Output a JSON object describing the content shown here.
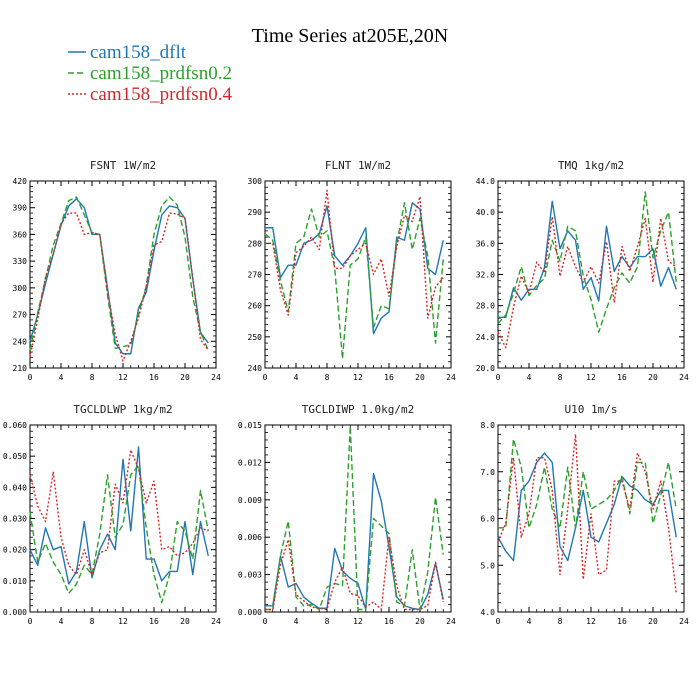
{
  "figure": {
    "title": "Time Series at205E,20N",
    "legend": [
      {
        "label": "cam158_dflt",
        "color": "#1f77b4",
        "dash": "solid"
      },
      {
        "label": "cam158_prdfsn0.2",
        "color": "#2ca02c",
        "dash": "dash"
      },
      {
        "label": "cam158_prdfsn0.4",
        "color": "#d62728",
        "dash": "dot"
      }
    ]
  },
  "chart_data": [
    {
      "type": "line",
      "title": "FSNT   1W/m2",
      "x": [
        0,
        1,
        2,
        3,
        4,
        5,
        6,
        7,
        8,
        9,
        10,
        11,
        12,
        13,
        14,
        15,
        16,
        17,
        18,
        19,
        20,
        21,
        22,
        23
      ],
      "xlim": [
        0,
        24
      ],
      "xticks": [
        0,
        4,
        8,
        12,
        16,
        20,
        24
      ],
      "xticklabels": [
        "0",
        "4",
        "8",
        "12",
        "16",
        "20",
        "24"
      ],
      "ylim": [
        210,
        420
      ],
      "yticks": [
        210,
        240,
        270,
        300,
        330,
        360,
        390,
        420
      ],
      "yticklabels": [
        "210",
        "240",
        "270",
        "300",
        "330",
        "360",
        "390",
        "420"
      ],
      "series": [
        {
          "name": "cam158_dflt",
          "color": "#1f77b4",
          "dash": "solid",
          "values": [
            240,
            270,
            305,
            338,
            370,
            392,
            400,
            390,
            360,
            360,
            300,
            238,
            226,
            226,
            277,
            295,
            342,
            382,
            392,
            390,
            378,
            310,
            250,
            238
          ]
        },
        {
          "name": "cam158_prdfsn0.2",
          "color": "#2ca02c",
          "dash": "dash",
          "values": [
            230,
            272,
            310,
            348,
            372,
            398,
            402,
            382,
            362,
            360,
            292,
            232,
            234,
            236,
            270,
            302,
            360,
            392,
            402,
            393,
            357,
            290,
            250,
            230
          ]
        },
        {
          "name": "cam158_prdfsn0.4",
          "color": "#d62728",
          "dash": "dot",
          "values": [
            222,
            265,
            312,
            338,
            372,
            384,
            384,
            360,
            362,
            360,
            296,
            248,
            218,
            240,
            266,
            302,
            348,
            352,
            384,
            383,
            378,
            312,
            242,
            230
          ]
        }
      ]
    },
    {
      "type": "line",
      "title": "FLNT   1W/m2",
      "x": [
        0,
        1,
        2,
        3,
        4,
        5,
        6,
        7,
        8,
        9,
        10,
        11,
        12,
        13,
        14,
        15,
        16,
        17,
        18,
        19,
        20,
        21,
        22,
        23
      ],
      "xlim": [
        0,
        24
      ],
      "xticks": [
        0,
        4,
        8,
        12,
        16,
        20,
        24
      ],
      "xticklabels": [
        "0",
        "4",
        "8",
        "12",
        "16",
        "20",
        "24"
      ],
      "ylim": [
        240,
        300
      ],
      "yticks": [
        240,
        250,
        260,
        270,
        280,
        290,
        300
      ],
      "yticklabels": [
        "240",
        "250",
        "260",
        "270",
        "280",
        "290",
        "300"
      ],
      "series": [
        {
          "name": "cam158_dflt",
          "color": "#1f77b4",
          "dash": "solid",
          "values": [
            285,
            285,
            269,
            273,
            273,
            280,
            281,
            283,
            292,
            276,
            273,
            276,
            280,
            285,
            251,
            256,
            258,
            282,
            281,
            293,
            291,
            272,
            270,
            281
          ]
        },
        {
          "name": "cam158_prdfsn0.2",
          "color": "#2ca02c",
          "dash": "dash",
          "values": [
            283,
            281,
            268,
            258,
            280,
            282,
            291,
            282,
            284,
            272,
            243,
            273,
            275,
            282,
            253,
            260,
            259,
            280,
            293,
            278,
            288,
            276,
            248,
            275
          ]
        },
        {
          "name": "cam158_prdfsn0.4",
          "color": "#d62728",
          "dash": "dot",
          "values": [
            280,
            280,
            265,
            257,
            277,
            279,
            282,
            278,
            297,
            272,
            272,
            276,
            278,
            280,
            270,
            275,
            263,
            279,
            289,
            287,
            295,
            256,
            266,
            269
          ]
        }
      ]
    },
    {
      "type": "line",
      "title": "TMQ   1kg/m2",
      "x": [
        0,
        1,
        2,
        3,
        4,
        5,
        6,
        7,
        8,
        9,
        10,
        11,
        12,
        13,
        14,
        15,
        16,
        17,
        18,
        19,
        20,
        21,
        22,
        23
      ],
      "xlim": [
        0,
        24
      ],
      "xticks": [
        0,
        4,
        8,
        12,
        16,
        20,
        24
      ],
      "xticklabels": [
        "0",
        "4",
        "8",
        "12",
        "16",
        "20",
        "24"
      ],
      "ylim": [
        20.0,
        44.0
      ],
      "yticks": [
        20,
        24,
        28,
        32,
        36,
        40,
        44
      ],
      "yticklabels": [
        "20.0",
        "24.0",
        "28.0",
        "32.0",
        "36.0",
        "40.0",
        "44.0"
      ],
      "series": [
        {
          "name": "cam158_dflt",
          "color": "#1f77b4",
          "dash": "solid",
          "values": [
            26.5,
            26.5,
            30.3,
            28.7,
            30.1,
            30.1,
            32.9,
            41.4,
            35.3,
            37.6,
            36.4,
            30.1,
            31.6,
            28.6,
            38.2,
            32.4,
            34.3,
            32.9,
            34.3,
            34.3,
            35.3,
            30.5,
            32.9,
            30.1
          ]
        },
        {
          "name": "cam158_prdfsn0.2",
          "color": "#2ca02c",
          "dash": "dash",
          "values": [
            25.7,
            26.8,
            29.6,
            33.0,
            29.3,
            30.6,
            31.5,
            36.4,
            33.7,
            38.2,
            37.6,
            31.8,
            28.8,
            24.6,
            27.6,
            30.3,
            32.2,
            30.9,
            33.0,
            42.6,
            34.1,
            37.6,
            40.0,
            31.0
          ]
        },
        {
          "name": "cam158_prdfsn0.4",
          "color": "#d62728",
          "dash": "dot",
          "values": [
            24.6,
            22.6,
            27.8,
            31.8,
            29.6,
            33.6,
            32.2,
            39.4,
            31.8,
            35.6,
            33.0,
            31.0,
            33.0,
            30.9,
            36.2,
            28.4,
            35.6,
            32.4,
            35.6,
            39.2,
            31.0,
            39.2,
            33.7,
            33.0
          ]
        }
      ]
    },
    {
      "type": "line",
      "title": "TGCLDLWP   1kg/m2",
      "x": [
        0,
        1,
        2,
        3,
        4,
        5,
        6,
        7,
        8,
        9,
        10,
        11,
        12,
        13,
        14,
        15,
        16,
        17,
        18,
        19,
        20,
        21,
        22,
        23
      ],
      "xlim": [
        0,
        24
      ],
      "xticks": [
        0,
        4,
        8,
        12,
        16,
        20,
        24
      ],
      "xticklabels": [
        "0",
        "4",
        "8",
        "12",
        "16",
        "20",
        "24"
      ],
      "ylim": [
        0.0,
        0.06
      ],
      "yticks": [
        0,
        0.01,
        0.02,
        0.03,
        0.04,
        0.05,
        0.06
      ],
      "yticklabels": [
        "0.000",
        "0.010",
        "0.020",
        "0.030",
        "0.040",
        "0.050",
        "0.060"
      ],
      "series": [
        {
          "name": "cam158_dflt",
          "color": "#1f77b4",
          "dash": "solid",
          "values": [
            0.02,
            0.015,
            0.027,
            0.02,
            0.021,
            0.009,
            0.013,
            0.029,
            0.011,
            0.02,
            0.025,
            0.02,
            0.049,
            0.026,
            0.053,
            0.017,
            0.017,
            0.01,
            0.013,
            0.013,
            0.029,
            0.012,
            0.029,
            0.018
          ]
        },
        {
          "name": "cam158_prdfsn0.2",
          "color": "#2ca02c",
          "dash": "dash",
          "values": [
            0.032,
            0.016,
            0.022,
            0.016,
            0.012,
            0.006,
            0.009,
            0.015,
            0.012,
            0.025,
            0.044,
            0.024,
            0.028,
            0.044,
            0.047,
            0.027,
            0.012,
            0.003,
            0.012,
            0.029,
            0.026,
            0.017,
            0.039,
            0.026
          ]
        },
        {
          "name": "cam158_prdfsn0.4",
          "color": "#d62728",
          "dash": "dot",
          "values": [
            0.044,
            0.034,
            0.029,
            0.045,
            0.024,
            0.015,
            0.012,
            0.02,
            0.012,
            0.019,
            0.02,
            0.041,
            0.035,
            0.052,
            0.046,
            0.035,
            0.042,
            0.02,
            0.021,
            0.018,
            0.019,
            0.022,
            0.027,
            0.026
          ]
        }
      ]
    },
    {
      "type": "line",
      "title": "TGCLDIWP   1.0kg/m2",
      "x": [
        0,
        1,
        2,
        3,
        4,
        5,
        6,
        7,
        8,
        9,
        10,
        11,
        12,
        13,
        14,
        15,
        16,
        17,
        18,
        19,
        20,
        21,
        22,
        23
      ],
      "xlim": [
        0,
        24
      ],
      "xticks": [
        0,
        4,
        8,
        12,
        16,
        20,
        24
      ],
      "xticklabels": [
        "0",
        "4",
        "8",
        "12",
        "16",
        "20",
        "24"
      ],
      "ylim": [
        0.0,
        0.015
      ],
      "yticks": [
        0,
        0.003,
        0.006,
        0.009,
        0.012,
        0.015
      ],
      "yticklabels": [
        "0.000",
        "0.003",
        "0.006",
        "0.009",
        "0.012",
        "0.015"
      ],
      "series": [
        {
          "name": "cam158_dflt",
          "color": "#1f77b4",
          "dash": "solid",
          "values": [
            0.0005,
            0.0005,
            0.0045,
            0.002,
            0.0023,
            0.0012,
            0.0007,
            0.0003,
            0.0003,
            0.0051,
            0.0033,
            0.0027,
            0.0023,
            0.0002,
            0.0111,
            0.0089,
            0.0052,
            0.0012,
            0.0005,
            0.0003,
            0.0002,
            0.0014,
            0.0039,
            0.001
          ]
        },
        {
          "name": "cam158_prdfsn0.2",
          "color": "#2ca02c",
          "dash": "dash",
          "values": [
            0.0002,
            0.0002,
            0.0045,
            0.0073,
            0.0012,
            0.0005,
            0.0006,
            0.0002,
            0.002,
            0.0023,
            0.0021,
            0.0149,
            0.0002,
            0.0002,
            0.0075,
            0.0069,
            0.0063,
            0.0008,
            0.0005,
            0.005,
            0.0002,
            0.0032,
            0.0092,
            0.0046
          ]
        },
        {
          "name": "cam158_prdfsn0.4",
          "color": "#d62728",
          "dash": "dot",
          "values": [
            0.0002,
            0.0002,
            0.0038,
            0.0058,
            0.0014,
            0.0009,
            0.0004,
            0.0003,
            0.0002,
            0.0024,
            0.0036,
            0.0015,
            0.0013,
            0.0004,
            0.0008,
            0.0002,
            0.006,
            0.0021,
            0.0002,
            0.0002,
            0.0002,
            0.0005,
            0.004,
            0.0008
          ]
        }
      ]
    },
    {
      "type": "line",
      "title": "U10   1m/s",
      "x": [
        0,
        1,
        2,
        3,
        4,
        5,
        6,
        7,
        8,
        9,
        10,
        11,
        12,
        13,
        14,
        15,
        16,
        17,
        18,
        19,
        20,
        21,
        22,
        23
      ],
      "xlim": [
        0,
        24
      ],
      "xticks": [
        0,
        4,
        8,
        12,
        16,
        20,
        24
      ],
      "xticklabels": [
        "0",
        "4",
        "8",
        "12",
        "16",
        "20",
        "24"
      ],
      "ylim": [
        4.0,
        8.0
      ],
      "yticks": [
        4,
        5,
        6,
        7,
        8
      ],
      "yticklabels": [
        "4.0",
        "5.0",
        "6.0",
        "7.0",
        "8.0"
      ],
      "series": [
        {
          "name": "cam158_dflt",
          "color": "#1f77b4",
          "dash": "solid",
          "values": [
            5.6,
            5.3,
            5.1,
            6.6,
            6.8,
            7.2,
            7.4,
            7.2,
            5.4,
            5.1,
            5.8,
            6.6,
            5.6,
            5.5,
            5.9,
            6.3,
            6.9,
            6.7,
            6.6,
            6.4,
            6.3,
            6.6,
            6.6,
            5.6
          ]
        },
        {
          "name": "cam158_prdfsn0.2",
          "color": "#2ca02c",
          "dash": "dash",
          "values": [
            5.8,
            5.8,
            7.7,
            7.1,
            5.8,
            6.3,
            7.1,
            6.2,
            5.8,
            7.1,
            5.8,
            7.0,
            6.2,
            6.3,
            6.4,
            6.6,
            6.9,
            6.1,
            7.2,
            7.2,
            5.9,
            6.5,
            7.2,
            6.2
          ]
        },
        {
          "name": "cam158_prdfsn0.4",
          "color": "#d62728",
          "dash": "dot",
          "values": [
            5.5,
            5.9,
            7.3,
            5.6,
            6.1,
            7.3,
            7.3,
            6.6,
            4.8,
            6.2,
            7.8,
            4.7,
            6.1,
            4.8,
            4.9,
            6.8,
            6.8,
            6.2,
            7.4,
            7.0,
            6.2,
            6.8,
            5.8,
            4.4
          ]
        }
      ]
    }
  ]
}
